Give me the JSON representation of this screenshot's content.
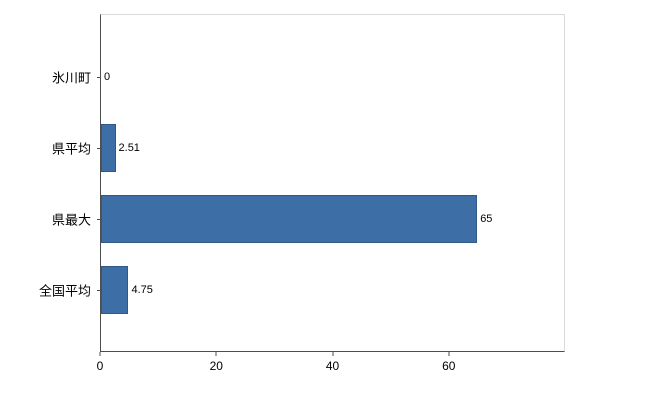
{
  "chart_data": {
    "type": "bar",
    "orientation": "horizontal",
    "title": "",
    "xlabel": "",
    "ylabel": "",
    "categories": [
      "氷川町",
      "県平均",
      "県最大",
      "全国平均"
    ],
    "values": [
      0,
      2.51,
      65,
      4.75
    ],
    "value_labels": [
      "0",
      "2.51",
      "65",
      "4.75"
    ],
    "x_ticks": [
      0,
      20,
      40,
      60
    ],
    "xlim": [
      0,
      80
    ],
    "bar_color": "#3d6ea5",
    "axis_color": "#4d4d4d",
    "frame_color": "#d9d9d9",
    "grid": "off",
    "legend": "none",
    "background": "#ffffff"
  }
}
